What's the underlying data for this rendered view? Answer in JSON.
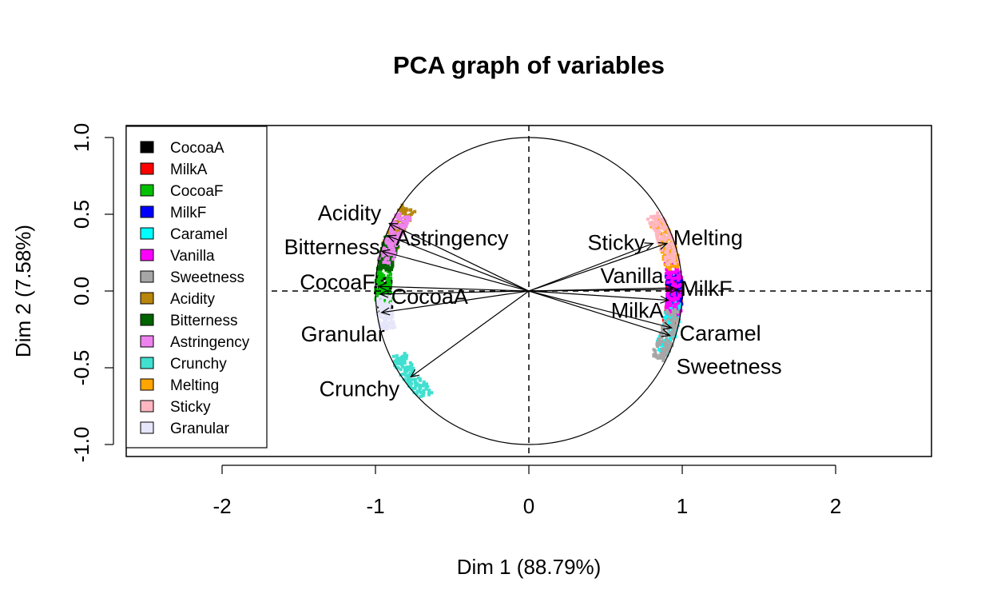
{
  "chart_data": {
    "type": "scatter",
    "title": "PCA graph of variables",
    "xlabel": "Dim 1 (88.79%)",
    "ylabel": "Dim 2 (7.58%)",
    "xlim": [
      -2.6,
      2.6
    ],
    "ylim": [
      -1.08,
      1.08
    ],
    "xticks": [
      "-2",
      "-1",
      "0",
      "1",
      "2"
    ],
    "yticks": [
      "-1.0",
      "-0.5",
      "0.0",
      "0.5",
      "1.0"
    ],
    "grid": false,
    "reference_lines": "dashed lines at x = 0 and y = 0",
    "unit_circle": true,
    "legend_position": "top-left",
    "variables": [
      {
        "name": "CocoaA",
        "x": -0.97,
        "y": -0.02,
        "label": "CocoaA",
        "color": "#000000"
      },
      {
        "name": "MilkA",
        "x": 0.91,
        "y": -0.06,
        "label": "MilkA",
        "color": "#FF0000"
      },
      {
        "name": "CocoaF",
        "x": -0.98,
        "y": 0.03,
        "label": "CocoaF",
        "color": "#00C000"
      },
      {
        "name": "MilkF",
        "x": 0.97,
        "y": 0.01,
        "label": "MilkF",
        "color": "#0000FF"
      },
      {
        "name": "Caramel",
        "x": 0.93,
        "y": -0.24,
        "label": "Caramel",
        "color": "#00FFFF"
      },
      {
        "name": "Vanilla",
        "x": 0.94,
        "y": 0.02,
        "label": "Vanilla",
        "color": "#FF00FF"
      },
      {
        "name": "Sweetness",
        "x": 0.92,
        "y": -0.29,
        "label": "Sweetness",
        "color": "#A6A6A6"
      },
      {
        "name": "Acidity",
        "x": -0.91,
        "y": 0.44,
        "label": "Acidity",
        "color": "#B8860B"
      },
      {
        "name": "Bitterness",
        "x": -0.96,
        "y": 0.26,
        "label": "Bitterness",
        "color": "#006400"
      },
      {
        "name": "Astringency",
        "x": -0.92,
        "y": 0.36,
        "label": "Astringency",
        "color": "#EE82EE"
      },
      {
        "name": "Crunchy",
        "x": -0.77,
        "y": -0.56,
        "label": "Crunchy",
        "color": "#40E0D0"
      },
      {
        "name": "Melting",
        "x": 0.9,
        "y": 0.31,
        "label": "Melting",
        "color": "#FFA500"
      },
      {
        "name": "Sticky",
        "x": 0.81,
        "y": 0.31,
        "label": "Sticky",
        "color": "#FFB6C1"
      },
      {
        "name": "Granular",
        "x": -0.96,
        "y": -0.14,
        "label": "Granular",
        "color": "#E6E6FA"
      }
    ],
    "legend": [
      {
        "name": "CocoaA",
        "color": "#000000"
      },
      {
        "name": "MilkA",
        "color": "#FF0000"
      },
      {
        "name": "CocoaF",
        "color": "#00C000"
      },
      {
        "name": "MilkF",
        "color": "#0000FF"
      },
      {
        "name": "Caramel",
        "color": "#00FFFF"
      },
      {
        "name": "Vanilla",
        "color": "#FF00FF"
      },
      {
        "name": "Sweetness",
        "color": "#A6A6A6"
      },
      {
        "name": "Acidity",
        "color": "#B8860B"
      },
      {
        "name": "Bitterness",
        "color": "#006400"
      },
      {
        "name": "Astringency",
        "color": "#EE82EE"
      },
      {
        "name": "Crunchy",
        "color": "#40E0D0"
      },
      {
        "name": "Melting",
        "color": "#FFA500"
      },
      {
        "name": "Sticky",
        "color": "#FFB6C1"
      },
      {
        "name": "Granular",
        "color": "#E6E6FA"
      }
    ]
  }
}
